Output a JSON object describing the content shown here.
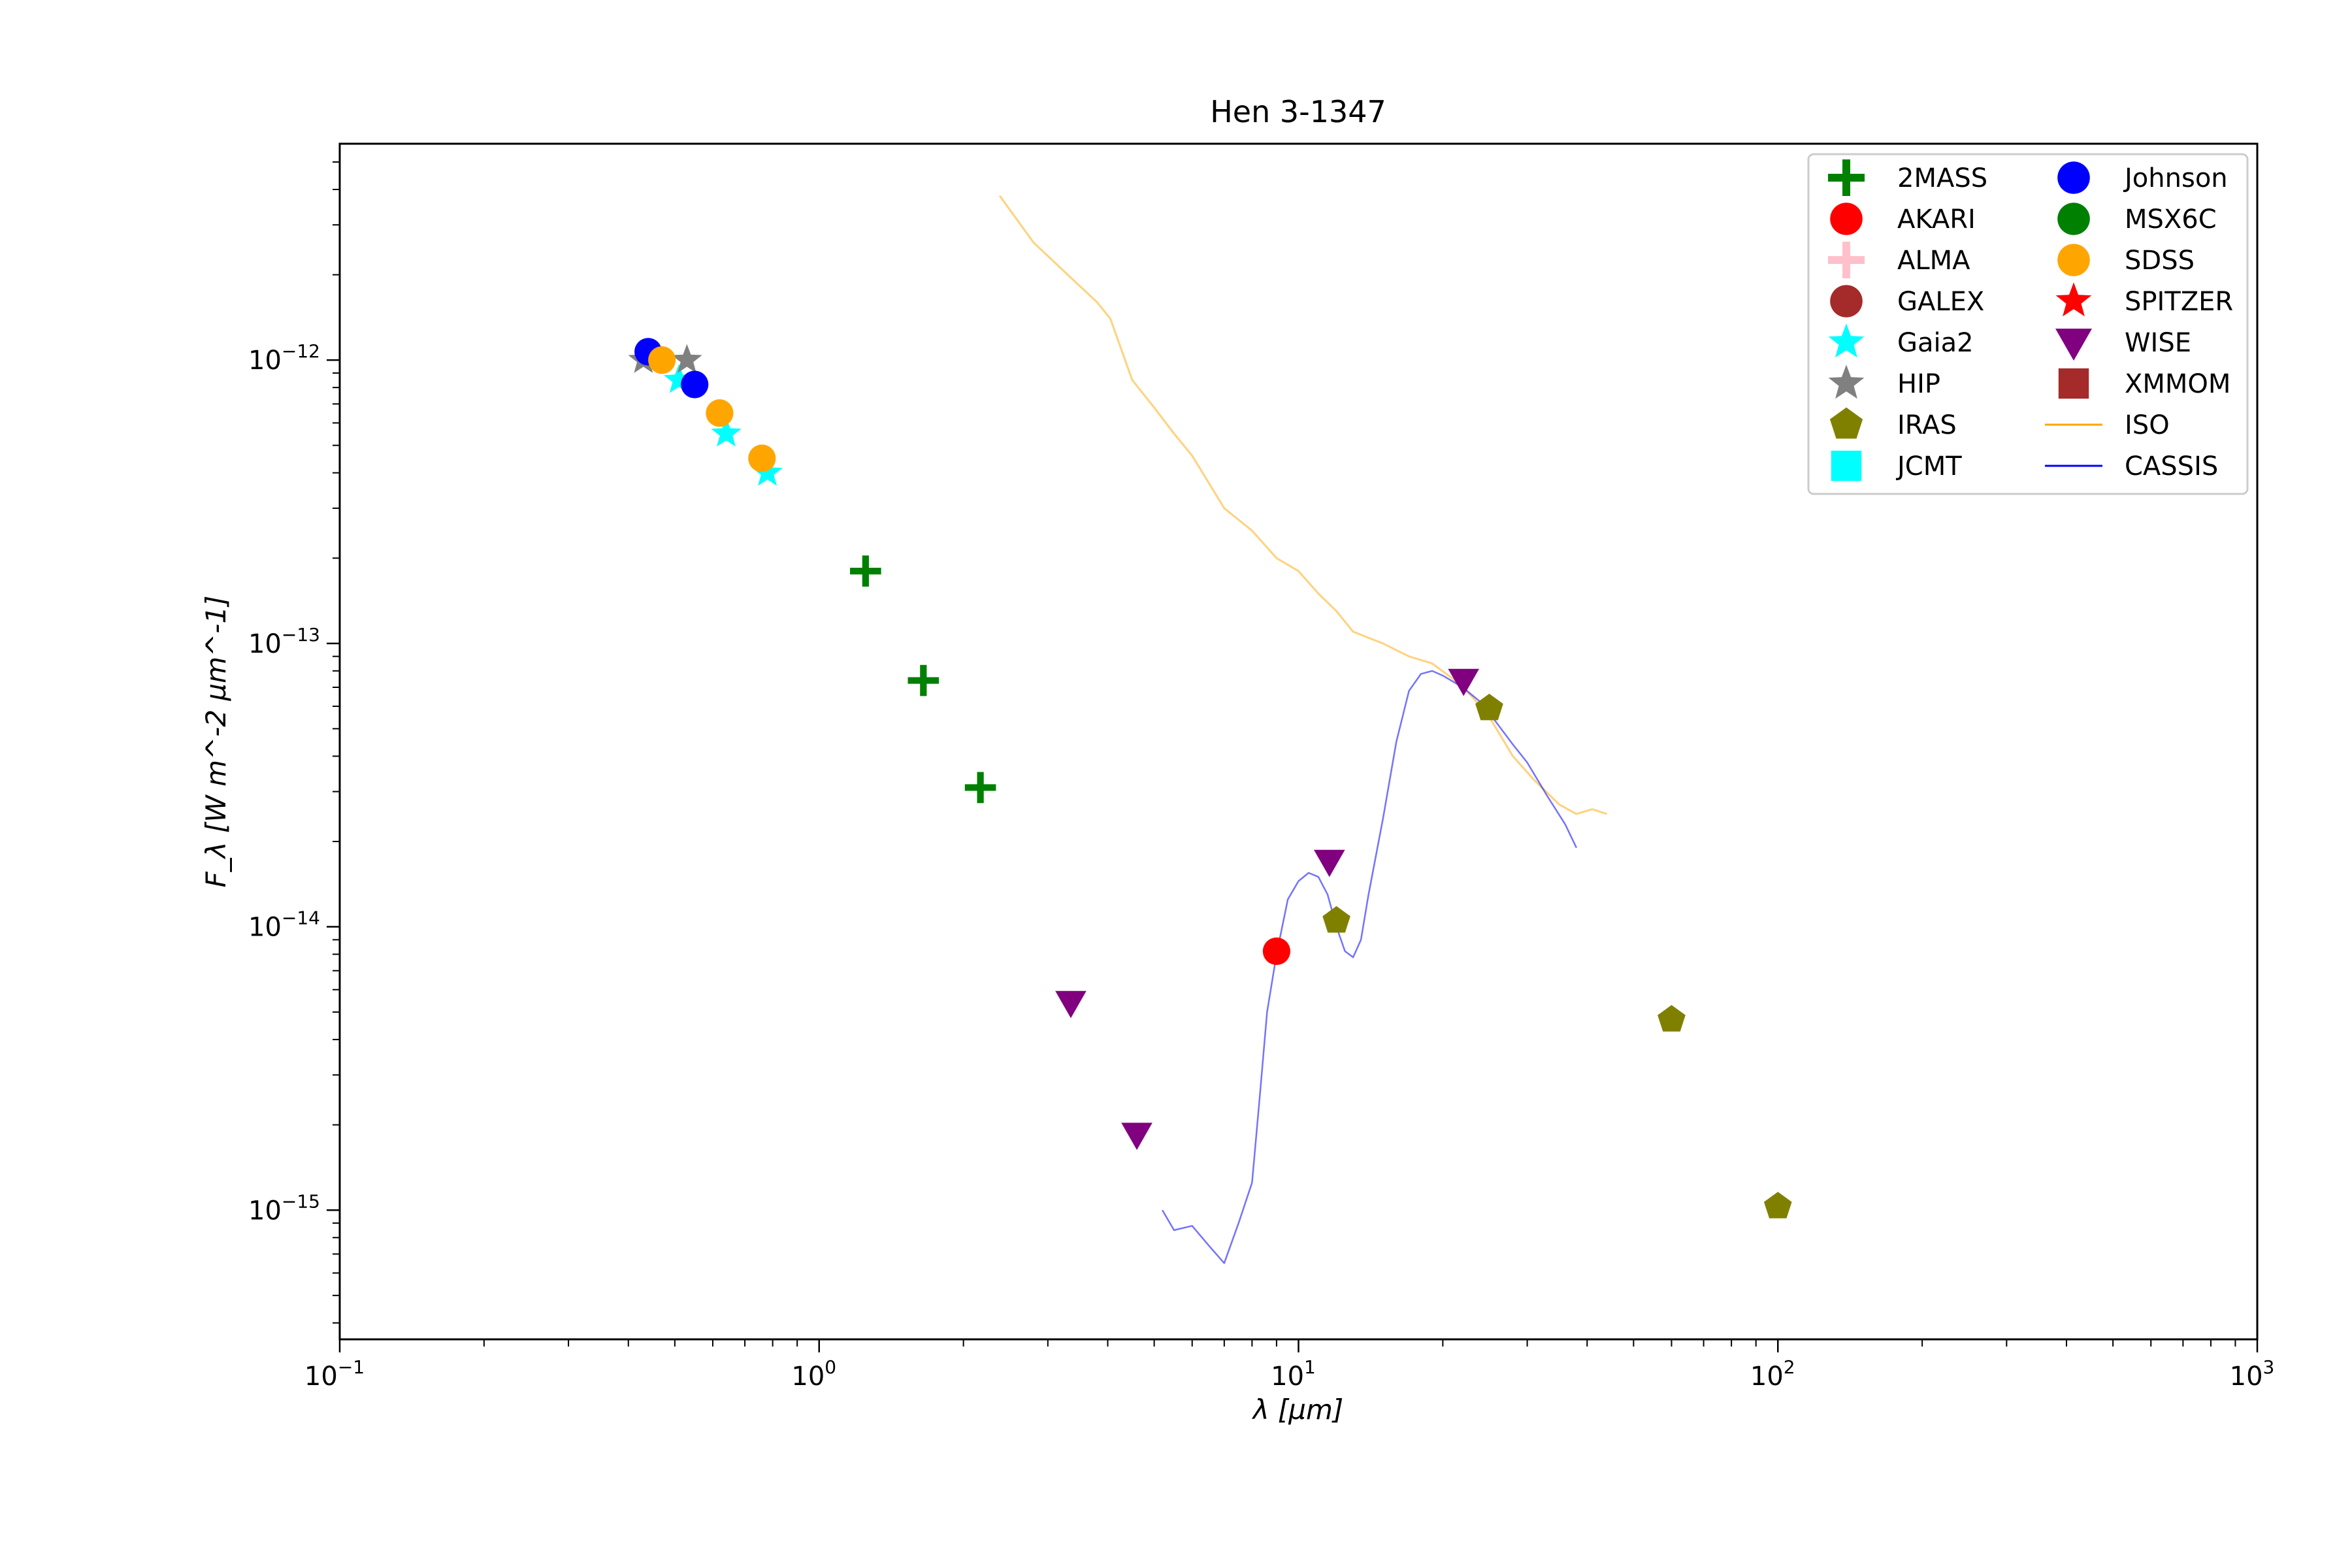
{
  "chart_data": {
    "type": "scatter",
    "title": "Hen 3-1347",
    "xlabel": "λ [μm]",
    "ylabel": "F_λ [W m^-2 μm^-1]",
    "xscale": "log",
    "yscale": "log",
    "xlim": [
      0.1,
      1000
    ],
    "ylim": [
      3.5e-16,
      5.8e-12
    ],
    "xticks": [
      {
        "value": 0.1,
        "base": "10",
        "exp": "−1"
      },
      {
        "value": 1,
        "base": "10",
        "exp": "0"
      },
      {
        "value": 10,
        "base": "10",
        "exp": "1"
      },
      {
        "value": 100,
        "base": "10",
        "exp": "2"
      },
      {
        "value": 1000,
        "base": "10",
        "exp": "3"
      }
    ],
    "yticks": [
      {
        "value": 1e-12,
        "base": "10",
        "exp": "−12"
      },
      {
        "value": 1e-13,
        "base": "10",
        "exp": "−13"
      },
      {
        "value": 1e-14,
        "base": "10",
        "exp": "−14"
      },
      {
        "value": 1e-15,
        "base": "10",
        "exp": "−15"
      }
    ],
    "grid": false,
    "legend_position": "top-right",
    "legend_columns": 2,
    "series": [
      {
        "name": "2MASS",
        "marker": "plus",
        "color": "#008000",
        "points": [
          [
            1.25,
            1.8e-13
          ],
          [
            1.65,
            7.4e-14
          ],
          [
            2.17,
            3.1e-14
          ]
        ]
      },
      {
        "name": "AKARI",
        "marker": "circle",
        "color": "#ff0000",
        "points": [
          [
            9.0,
            8.2e-15
          ]
        ]
      },
      {
        "name": "ALMA",
        "marker": "plus",
        "color": "#ffc0cb",
        "points": []
      },
      {
        "name": "GALEX",
        "marker": "circle",
        "color": "#a52a2a",
        "points": []
      },
      {
        "name": "Gaia2",
        "marker": "star",
        "color": "#00ffff",
        "points": [
          [
            0.51,
            8.5e-13
          ],
          [
            0.64,
            5.5e-13
          ],
          [
            0.78,
            4e-13
          ]
        ]
      },
      {
        "name": "HIP",
        "marker": "star",
        "color": "#808080",
        "points": [
          [
            0.43,
            1e-12
          ],
          [
            0.53,
            1e-12
          ]
        ]
      },
      {
        "name": "IRAS",
        "marker": "pentagon",
        "color": "#808000",
        "points": [
          [
            12,
            1.05e-14
          ],
          [
            25,
            5.9e-14
          ],
          [
            60,
            4.7e-15
          ],
          [
            100,
            1.03e-15
          ]
        ]
      },
      {
        "name": "JCMT",
        "marker": "square",
        "color": "#00ffff",
        "points": []
      },
      {
        "name": "Johnson",
        "marker": "circle",
        "color": "#0000ff",
        "points": [
          [
            0.44,
            1.07e-12
          ],
          [
            0.55,
            8.2e-13
          ]
        ]
      },
      {
        "name": "MSX6C",
        "marker": "circle",
        "color": "#008000",
        "points": []
      },
      {
        "name": "SDSS",
        "marker": "circle",
        "color": "#ffa500",
        "points": [
          [
            0.47,
            1e-12
          ],
          [
            0.62,
            6.5e-13
          ],
          [
            0.76,
            4.5e-13
          ]
        ]
      },
      {
        "name": "SPITZER",
        "marker": "star",
        "color": "#ff0000",
        "points": []
      },
      {
        "name": "WISE",
        "marker": "triangle-down",
        "color": "#800080",
        "points": [
          [
            3.35,
            5.4e-15
          ],
          [
            4.6,
            1.85e-15
          ],
          [
            11.6,
            1.7e-14
          ],
          [
            22.1,
            7.4e-14
          ]
        ]
      },
      {
        "name": "XMMOM",
        "marker": "square",
        "color": "#a52a2a",
        "points": []
      },
      {
        "name": "ISO",
        "marker": "line",
        "color": "#ffa500",
        "points": [
          [
            2.38,
            3.8e-12
          ],
          [
            2.8,
            2.6e-12
          ],
          [
            3.3,
            2e-12
          ],
          [
            3.8,
            1.6e-12
          ],
          [
            4.05,
            1.4e-12
          ],
          [
            4.5,
            8.5e-13
          ],
          [
            5.0,
            6.8e-13
          ],
          [
            5.5,
            5.5e-13
          ],
          [
            6.0,
            4.6e-13
          ],
          [
            7.0,
            3e-13
          ],
          [
            8.0,
            2.5e-13
          ],
          [
            9.0,
            2e-13
          ],
          [
            10.0,
            1.8e-13
          ],
          [
            11.0,
            1.5e-13
          ],
          [
            12.0,
            1.3e-13
          ],
          [
            13.0,
            1.1e-13
          ],
          [
            15.0,
            1e-13
          ],
          [
            17.0,
            9e-14
          ],
          [
            19.0,
            8.5e-14
          ],
          [
            21.0,
            7.5e-14
          ],
          [
            23.0,
            6.5e-14
          ],
          [
            25.0,
            5.5e-14
          ],
          [
            28.0,
            4e-14
          ],
          [
            31.0,
            3.3e-14
          ],
          [
            35.0,
            2.7e-14
          ],
          [
            38.0,
            2.5e-14
          ],
          [
            41.0,
            2.6e-14
          ],
          [
            44.0,
            2.5e-14
          ]
        ]
      },
      {
        "name": "CASSIS",
        "marker": "line",
        "color": "#0000ff",
        "points": [
          [
            5.2,
            1e-15
          ],
          [
            5.5,
            8.5e-16
          ],
          [
            6.0,
            8.8e-16
          ],
          [
            6.5,
            7.5e-16
          ],
          [
            7.0,
            6.5e-16
          ],
          [
            7.5,
            9e-16
          ],
          [
            8.0,
            1.25e-15
          ],
          [
            8.3,
            2.5e-15
          ],
          [
            8.6,
            5e-15
          ],
          [
            9.0,
            8e-15
          ],
          [
            9.5,
            1.25e-14
          ],
          [
            10.0,
            1.45e-14
          ],
          [
            10.5,
            1.55e-14
          ],
          [
            11.0,
            1.5e-14
          ],
          [
            11.5,
            1.3e-14
          ],
          [
            12.0,
            1e-14
          ],
          [
            12.5,
            8.2e-15
          ],
          [
            13.0,
            7.8e-15
          ],
          [
            13.5,
            9e-15
          ],
          [
            14.0,
            1.3e-14
          ],
          [
            15.0,
            2.4e-14
          ],
          [
            16.0,
            4.5e-14
          ],
          [
            17.0,
            6.8e-14
          ],
          [
            18.0,
            7.8e-14
          ],
          [
            19.0,
            8e-14
          ],
          [
            20.0,
            7.7e-14
          ],
          [
            22.0,
            7e-14
          ],
          [
            24.0,
            6.2e-14
          ],
          [
            26.0,
            5.2e-14
          ],
          [
            28.0,
            4.4e-14
          ],
          [
            30.0,
            3.8e-14
          ],
          [
            33.0,
            2.9e-14
          ],
          [
            36.0,
            2.3e-14
          ],
          [
            38.0,
            1.9e-14
          ]
        ]
      }
    ]
  }
}
